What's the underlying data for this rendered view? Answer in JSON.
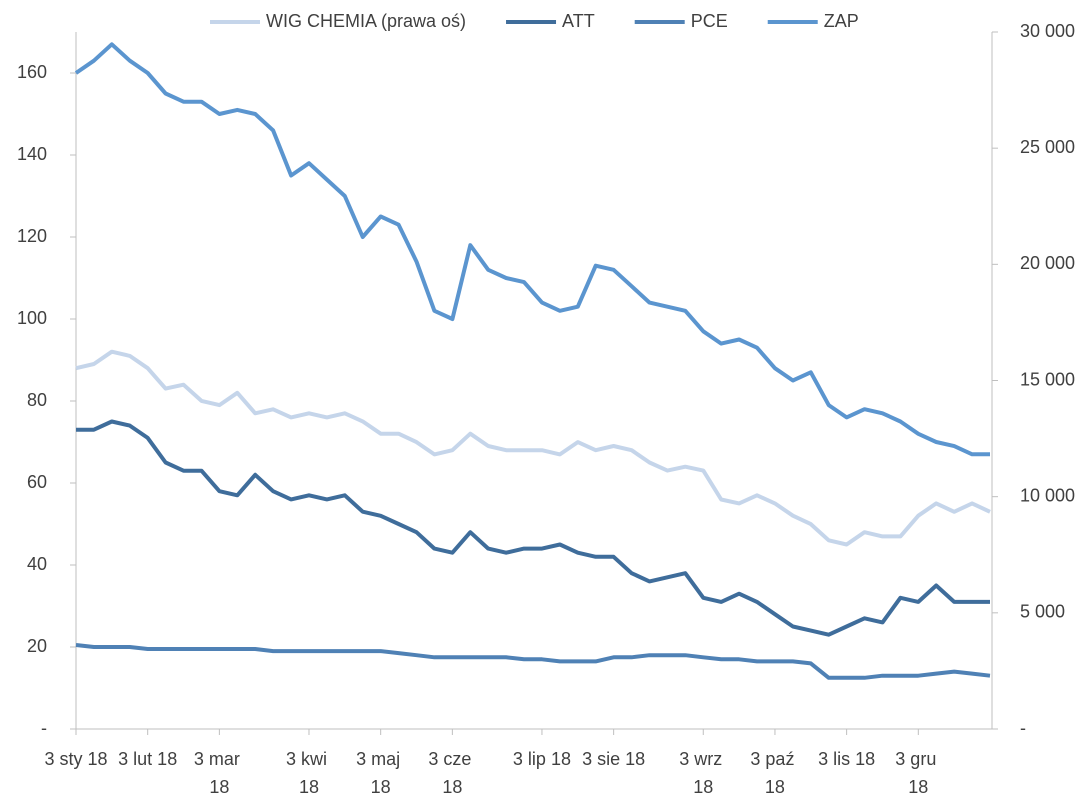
{
  "chart_data": {
    "type": "line",
    "categories": [
      "3 sty 18",
      null,
      null,
      null,
      "3 lut 18",
      null,
      null,
      null,
      "3 mar 18",
      null,
      null,
      null,
      null,
      "3 kwi 18",
      null,
      null,
      null,
      "3 maj 18",
      null,
      null,
      null,
      "3 cze 18",
      null,
      null,
      null,
      null,
      "3 lip 18",
      null,
      null,
      null,
      "3 sie 18",
      null,
      null,
      null,
      null,
      "3 wrz 18",
      null,
      null,
      null,
      "3 paź 18",
      null,
      null,
      null,
      "3 lis 18",
      null,
      null,
      null,
      "3 gru 18",
      null,
      null,
      null,
      null
    ],
    "series": [
      {
        "name": "WIG CHEMIA (prawa oś)",
        "color": "#c5d5ea",
        "axis": "y2",
        "values": [
          15530,
          15710,
          16240,
          16060,
          15530,
          14650,
          14820,
          14120,
          13940,
          14470,
          13590,
          13760,
          13410,
          13590,
          13410,
          13590,
          13240,
          12710,
          12710,
          12350,
          11820,
          12000,
          12710,
          12180,
          12000,
          12000,
          12000,
          11820,
          12350,
          12000,
          12180,
          12000,
          11470,
          11120,
          11290,
          11120,
          9880,
          9710,
          10060,
          9710,
          9180,
          8820,
          8120,
          7940,
          8470,
          8290,
          8290,
          9180,
          9710,
          9350,
          9710,
          9350
        ]
      },
      {
        "name": "ATT",
        "color": "#3f6d9b",
        "values": [
          73,
          73,
          75,
          74,
          71,
          65,
          63,
          63,
          58,
          57,
          62,
          58,
          56,
          57,
          56,
          57,
          53,
          52,
          50,
          48,
          44,
          43,
          48,
          44,
          43,
          44,
          44,
          45,
          43,
          42,
          42,
          38,
          36,
          37,
          38,
          32,
          31,
          33,
          31,
          28,
          25,
          24,
          23,
          25,
          27,
          26,
          32,
          31,
          35,
          31,
          31,
          31
        ]
      },
      {
        "name": "PCE",
        "color": "#4f81b5",
        "values": [
          20.5,
          20,
          20,
          20,
          19.5,
          19.5,
          19.5,
          19.5,
          19.5,
          19.5,
          19.5,
          19,
          19,
          19,
          19,
          19,
          19,
          19,
          18.5,
          18,
          17.5,
          17.5,
          17.5,
          17.5,
          17.5,
          17,
          17,
          16.5,
          16.5,
          16.5,
          17.5,
          17.5,
          18,
          18,
          18,
          17.5,
          17,
          17,
          16.5,
          16.5,
          16.5,
          16,
          12.5,
          12.5,
          12.5,
          13,
          13,
          13,
          13.5,
          14,
          13.5,
          13
        ]
      },
      {
        "name": "ZAP",
        "color": "#5b95cf",
        "values": [
          160,
          163,
          167,
          163,
          160,
          155,
          153,
          153,
          150,
          151,
          150,
          146,
          135,
          138,
          134,
          130,
          120,
          125,
          123,
          114,
          102,
          100,
          118,
          112,
          110,
          109,
          104,
          102,
          103,
          113,
          112,
          108,
          104,
          103,
          102,
          97,
          94,
          95,
          93,
          88,
          85,
          87,
          79,
          76,
          78,
          77,
          75,
          72,
          70,
          69,
          67,
          67
        ]
      }
    ],
    "ylim": [
      0,
      170
    ],
    "yticks": [
      {
        "value": 0,
        "label": "-"
      },
      20,
      40,
      60,
      80,
      100,
      120,
      140,
      160
    ],
    "y2lim": [
      0,
      30000
    ],
    "y2ticks": [
      {
        "value": 0,
        "label": "-"
      },
      {
        "value": 5000,
        "label": "5 000"
      },
      {
        "value": 10000,
        "label": "10 000"
      },
      {
        "value": 15000,
        "label": "15 000"
      },
      {
        "value": 20000,
        "label": "20 000"
      },
      {
        "value": 25000,
        "label": "25 000"
      },
      {
        "value": 30000,
        "label": "30 000"
      }
    ],
    "legend": "top"
  }
}
